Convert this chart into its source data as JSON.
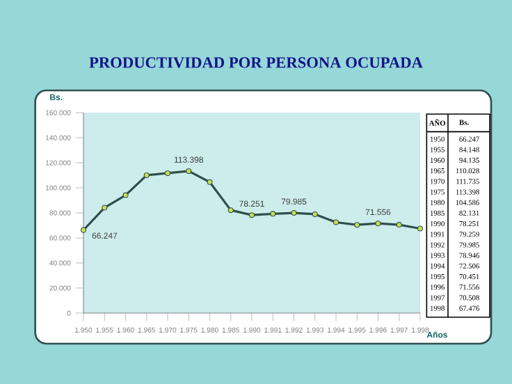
{
  "chart_data": {
    "type": "line",
    "title": "PRODUCTIVIDAD POR PERSONA OCUPADA",
    "xlabel": "Años",
    "ylabel": "Bs.",
    "categories": [
      "1.950",
      "1.955",
      "1.960",
      "1.965",
      "1.970",
      "1.975",
      "1.980",
      "1.985",
      "1.990",
      "1.991",
      "1.992",
      "1.993",
      "1.994",
      "1.995",
      "1.996",
      "1.997",
      "1.998"
    ],
    "values": [
      66247,
      84148,
      94135,
      110028,
      111735,
      113398,
      104586,
      82131,
      78251,
      79259,
      79985,
      78946,
      72506,
      70451,
      71556,
      70508,
      67476
    ],
    "value_labels": [
      "66.247",
      null,
      null,
      null,
      null,
      "113.398",
      null,
      null,
      "78.251",
      null,
      "79.985",
      null,
      null,
      null,
      "71.556",
      null,
      null
    ],
    "color": "#2f4f4f",
    "marker": "circle",
    "line_style": "solid",
    "grid": false,
    "ylim": [
      0,
      160000
    ],
    "yticks": [
      0,
      {
        "value": 20000,
        "label": "20.000"
      },
      {
        "value": 40000,
        "label": "40.000"
      },
      {
        "value": 60000,
        "label": "60.000"
      },
      {
        "value": 80000,
        "label": "80.000"
      },
      {
        "value": 100000,
        "label": "100.000"
      },
      {
        "value": 120000,
        "label": "120.000"
      },
      {
        "value": 140000,
        "label": "140.000"
      },
      {
        "value": 160000,
        "label": "160.000"
      }
    ],
    "annotations": [
      "AÑO",
      "Bs.",
      "1950",
      "66.247",
      "1955",
      "84.148",
      "1960",
      "94.135",
      "1965",
      "110.028",
      "1970",
      "111.735",
      "1975",
      "113.398",
      "1980",
      "104.586",
      "1985",
      "82.131",
      "1990",
      "78.251",
      "1991",
      "79.259",
      "1992",
      "79.985",
      "1993",
      "78.946",
      "1994",
      "72.506",
      "1995",
      "70.451",
      "1996",
      "71.556",
      "1997",
      "70.508",
      "1998",
      "67.476"
    ]
  }
}
